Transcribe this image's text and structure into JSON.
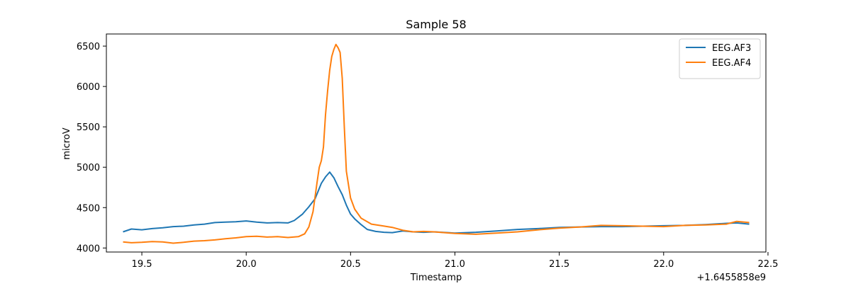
{
  "chart_data": {
    "type": "line",
    "title": "Sample 58",
    "xlabel": "Timestamp",
    "ylabel": "microV",
    "x_offset_label": "+1.6455858e9",
    "xlim": [
      19.33,
      22.49
    ],
    "ylim": [
      3950,
      6650
    ],
    "x_ticks": [
      19.5,
      20.0,
      20.5,
      21.0,
      21.5,
      22.0,
      22.5
    ],
    "x_tick_labels": [
      "19.5",
      "20.0",
      "20.5",
      "21.0",
      "21.5",
      "22.0",
      "22.5"
    ],
    "y_ticks": [
      4000,
      4500,
      5000,
      5500,
      6000,
      6500
    ],
    "y_tick_labels": [
      "4000",
      "4500",
      "5000",
      "5500",
      "6000",
      "6500"
    ],
    "grid": false,
    "legend_position": "top-right",
    "series": [
      {
        "name": "EEG.AF3",
        "color": "#1f77b4",
        "points": [
          [
            19.41,
            4200
          ],
          [
            19.45,
            4235
          ],
          [
            19.5,
            4225
          ],
          [
            19.55,
            4240
          ],
          [
            19.6,
            4250
          ],
          [
            19.65,
            4265
          ],
          [
            19.7,
            4270
          ],
          [
            19.75,
            4285
          ],
          [
            19.8,
            4295
          ],
          [
            19.85,
            4315
          ],
          [
            19.9,
            4320
          ],
          [
            19.95,
            4325
          ],
          [
            20.0,
            4335
          ],
          [
            20.05,
            4320
          ],
          [
            20.1,
            4310
          ],
          [
            20.15,
            4315
          ],
          [
            20.2,
            4310
          ],
          [
            20.23,
            4340
          ],
          [
            20.27,
            4420
          ],
          [
            20.3,
            4510
          ],
          [
            20.33,
            4610
          ],
          [
            20.36,
            4800
          ],
          [
            20.38,
            4880
          ],
          [
            20.4,
            4940
          ],
          [
            20.42,
            4870
          ],
          [
            20.44,
            4760
          ],
          [
            20.46,
            4660
          ],
          [
            20.48,
            4530
          ],
          [
            20.5,
            4420
          ],
          [
            20.52,
            4360
          ],
          [
            20.55,
            4290
          ],
          [
            20.58,
            4230
          ],
          [
            20.62,
            4205
          ],
          [
            20.66,
            4195
          ],
          [
            20.7,
            4190
          ],
          [
            20.75,
            4210
          ],
          [
            20.8,
            4200
          ],
          [
            20.85,
            4195
          ],
          [
            20.9,
            4200
          ],
          [
            21.0,
            4185
          ],
          [
            21.1,
            4195
          ],
          [
            21.2,
            4210
          ],
          [
            21.3,
            4230
          ],
          [
            21.4,
            4240
          ],
          [
            21.5,
            4255
          ],
          [
            21.6,
            4260
          ],
          [
            21.7,
            4265
          ],
          [
            21.8,
            4265
          ],
          [
            21.9,
            4270
          ],
          [
            22.0,
            4275
          ],
          [
            22.1,
            4280
          ],
          [
            22.2,
            4290
          ],
          [
            22.3,
            4305
          ],
          [
            22.35,
            4310
          ],
          [
            22.41,
            4295
          ]
        ]
      },
      {
        "name": "EEG.AF4",
        "color": "#ff7f0e",
        "points": [
          [
            19.41,
            4075
          ],
          [
            19.45,
            4065
          ],
          [
            19.5,
            4070
          ],
          [
            19.55,
            4080
          ],
          [
            19.6,
            4075
          ],
          [
            19.65,
            4060
          ],
          [
            19.7,
            4070
          ],
          [
            19.75,
            4085
          ],
          [
            19.8,
            4090
          ],
          [
            19.85,
            4100
          ],
          [
            19.9,
            4115
          ],
          [
            19.95,
            4125
          ],
          [
            20.0,
            4140
          ],
          [
            20.05,
            4145
          ],
          [
            20.1,
            4135
          ],
          [
            20.15,
            4140
          ],
          [
            20.2,
            4130
          ],
          [
            20.25,
            4140
          ],
          [
            20.28,
            4175
          ],
          [
            20.3,
            4260
          ],
          [
            20.32,
            4450
          ],
          [
            20.34,
            4820
          ],
          [
            20.35,
            5000
          ],
          [
            20.36,
            5080
          ],
          [
            20.37,
            5250
          ],
          [
            20.38,
            5650
          ],
          [
            20.39,
            5950
          ],
          [
            20.4,
            6200
          ],
          [
            20.41,
            6370
          ],
          [
            20.42,
            6460
          ],
          [
            20.43,
            6520
          ],
          [
            20.44,
            6480
          ],
          [
            20.45,
            6420
          ],
          [
            20.46,
            6100
          ],
          [
            20.47,
            5500
          ],
          [
            20.48,
            4950
          ],
          [
            20.5,
            4620
          ],
          [
            20.52,
            4480
          ],
          [
            20.55,
            4370
          ],
          [
            20.6,
            4295
          ],
          [
            20.65,
            4275
          ],
          [
            20.7,
            4255
          ],
          [
            20.75,
            4220
          ],
          [
            20.8,
            4200
          ],
          [
            20.85,
            4205
          ],
          [
            20.9,
            4200
          ],
          [
            21.0,
            4180
          ],
          [
            21.1,
            4170
          ],
          [
            21.2,
            4185
          ],
          [
            21.3,
            4200
          ],
          [
            21.4,
            4225
          ],
          [
            21.5,
            4245
          ],
          [
            21.6,
            4260
          ],
          [
            21.7,
            4280
          ],
          [
            21.8,
            4275
          ],
          [
            21.9,
            4270
          ],
          [
            22.0,
            4265
          ],
          [
            22.1,
            4280
          ],
          [
            22.2,
            4285
          ],
          [
            22.3,
            4295
          ],
          [
            22.35,
            4330
          ],
          [
            22.41,
            4315
          ]
        ]
      }
    ]
  }
}
